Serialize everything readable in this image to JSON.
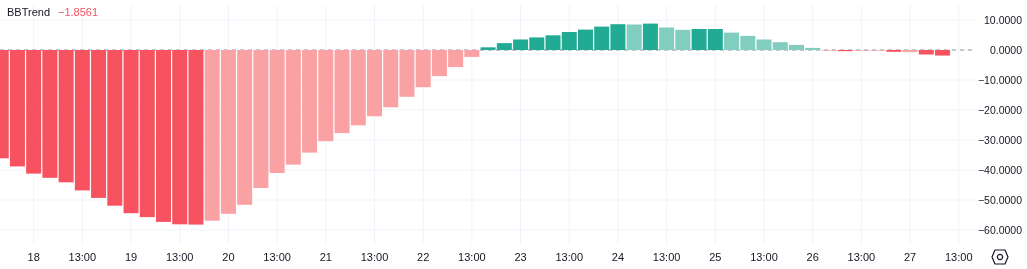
{
  "chart_data": {
    "type": "bar",
    "title": "BBTrend",
    "subtitle": "−1.8561",
    "categories": [
      null,
      null,
      "18",
      null,
      null,
      "13:00",
      null,
      null,
      "19",
      null,
      null,
      "13:00",
      null,
      null,
      "20",
      null,
      null,
      "13:00",
      null,
      null,
      "21",
      null,
      null,
      "13:00",
      null,
      null,
      "22",
      null,
      null,
      "13:00",
      null,
      null,
      "23",
      null,
      null,
      "13:00",
      null,
      null,
      "24",
      null,
      null,
      "13:00",
      null,
      null,
      "25",
      null,
      null,
      "13:00",
      null,
      null,
      "26",
      null,
      null,
      "13:00",
      null,
      null,
      "27",
      null,
      null,
      "13:00"
    ],
    "values": [
      -36.1,
      -38.8,
      -41.2,
      -42.6,
      -44.1,
      -46.8,
      -49.3,
      -51.9,
      -54.4,
      -55.7,
      -57.3,
      -58.1,
      -58.2,
      -56.9,
      -54.6,
      -51.6,
      -46.0,
      -41.0,
      -38.2,
      -34.2,
      -30.4,
      -27.7,
      -25.1,
      -22.1,
      -19.1,
      -15.6,
      -12.4,
      -8.7,
      -5.7,
      -2.3,
      0.9,
      2.3,
      3.5,
      4.2,
      4.9,
      6.0,
      6.8,
      7.8,
      8.6,
      8.5,
      8.8,
      7.5,
      6.7,
      7.0,
      7.0,
      5.8,
      4.7,
      3.5,
      2.6,
      1.7,
      0.7,
      -0.2,
      -0.4,
      -0.2,
      -0.2,
      -0.6,
      -0.7,
      -1.5,
      -1.8561,
      null
    ],
    "colors": [
      "#f7525f",
      "#f7525f",
      "#f7525f",
      "#f7525f",
      "#f7525f",
      "#f7525f",
      "#f7525f",
      "#f7525f",
      "#f7525f",
      "#f7525f",
      "#f7525f",
      "#f7525f",
      "#f7525f",
      "#faa1a4",
      "#faa1a4",
      "#faa1a4",
      "#faa1a4",
      "#faa1a4",
      "#faa1a4",
      "#faa1a4",
      "#faa1a4",
      "#faa1a4",
      "#faa1a4",
      "#faa1a4",
      "#faa1a4",
      "#faa1a4",
      "#faa1a4",
      "#faa1a4",
      "#faa1a4",
      "#faa1a4",
      "#22ab94",
      "#22ab94",
      "#22ab94",
      "#22ab94",
      "#22ab94",
      "#22ab94",
      "#22ab94",
      "#22ab94",
      "#22ab94",
      "#81cdc0",
      "#22ab94",
      "#81cdc0",
      "#81cdc0",
      "#22ab94",
      "#22ab94",
      "#81cdc0",
      "#81cdc0",
      "#81cdc0",
      "#81cdc0",
      "#81cdc0",
      "#81cdc0",
      "#faa1a4",
      "#f7525f",
      "#faa1a4",
      "#faa1a4",
      "#f7525f",
      "#faa1a4",
      "#f7525f",
      "#f7525f",
      null
    ],
    "ylim": [
      -65,
      15
    ],
    "yticks": [
      {
        "value": 10,
        "label": "10.0000"
      },
      {
        "value": 0,
        "label": "0.0000"
      },
      {
        "value": -10,
        "label": "−10.0000"
      },
      {
        "value": -20,
        "label": "−20.0000"
      },
      {
        "value": -30,
        "label": "−30.0000"
      },
      {
        "value": -40,
        "label": "−40.0000"
      },
      {
        "value": -50,
        "label": "−50.0000"
      },
      {
        "value": -60,
        "label": "−60.0000"
      }
    ],
    "grid": true,
    "ref_lines": [
      {
        "axis": "y",
        "value": 0,
        "color": "#9598a1",
        "line_style": "dashed"
      }
    ]
  }
}
